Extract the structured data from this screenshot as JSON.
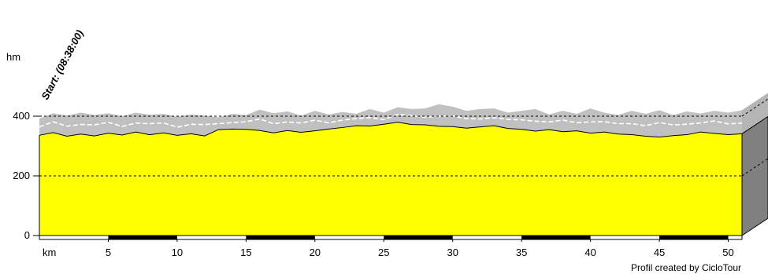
{
  "chart_data": {
    "type": "area",
    "title": "",
    "xlabel": "km",
    "ylabel": "hm",
    "xlim": [
      0,
      51
    ],
    "ylim": [
      0,
      400
    ],
    "x_ticks": [
      5,
      10,
      15,
      20,
      25,
      30,
      35,
      40,
      45,
      50
    ],
    "y_ticks": [
      0,
      200,
      400
    ],
    "start_label": "Start: (08:38:00)",
    "credit": "Profil created by CicloTour",
    "grid": "dashed horizontal at 200 and 400",
    "colors": {
      "fill": "#ffff00",
      "outline": "#000000",
      "background_band": "#c0c0c0",
      "side_face": "#808080",
      "top_face": "#b5b5b5",
      "grid": "#000000"
    },
    "series": [
      {
        "values_x": [
          0,
          1,
          2,
          3,
          4,
          5,
          6,
          7,
          8,
          9,
          10,
          11,
          12,
          13,
          14,
          15,
          16,
          17,
          18,
          19,
          20,
          21,
          22,
          23,
          24,
          25,
          26,
          27,
          28,
          29,
          30,
          31,
          32,
          33,
          34,
          35,
          36,
          37,
          38,
          39,
          40,
          41,
          42,
          43,
          44,
          45,
          46,
          47,
          48,
          49,
          50,
          51
        ],
        "values_y": [
          336,
          345,
          333,
          340,
          334,
          343,
          337,
          347,
          338,
          344,
          336,
          341,
          334,
          355,
          357,
          356,
          352,
          344,
          352,
          346,
          351,
          357,
          362,
          368,
          367,
          373,
          380,
          372,
          371,
          366,
          365,
          360,
          364,
          368,
          359,
          356,
          350,
          355,
          348,
          351,
          343,
          347,
          340,
          338,
          333,
          330,
          335,
          338,
          347,
          342,
          338,
          341
        ]
      }
    ],
    "background_band": {
      "values_x": [
        0,
        1,
        2,
        3,
        4,
        5,
        6,
        7,
        8,
        9,
        10,
        11,
        12,
        13,
        14,
        15,
        16,
        17,
        18,
        19,
        20,
        21,
        22,
        23,
        24,
        25,
        26,
        27,
        28,
        29,
        30,
        31,
        32,
        33,
        34,
        35,
        36,
        37,
        38,
        39,
        40,
        41,
        42,
        43,
        44,
        45,
        46,
        47,
        48,
        49,
        50,
        51
      ],
      "values_y": [
        392,
        410,
        402,
        412,
        404,
        410,
        400,
        412,
        405,
        408,
        398,
        406,
        402,
        396,
        408,
        404,
        422,
        410,
        416,
        402,
        418,
        406,
        414,
        408,
        424,
        412,
        430,
        424,
        426,
        440,
        432,
        418,
        424,
        426,
        412,
        418,
        424,
        406,
        418,
        408,
        426,
        412,
        404,
        418,
        408,
        420,
        404,
        416,
        409,
        418,
        412,
        420
      ]
    }
  }
}
